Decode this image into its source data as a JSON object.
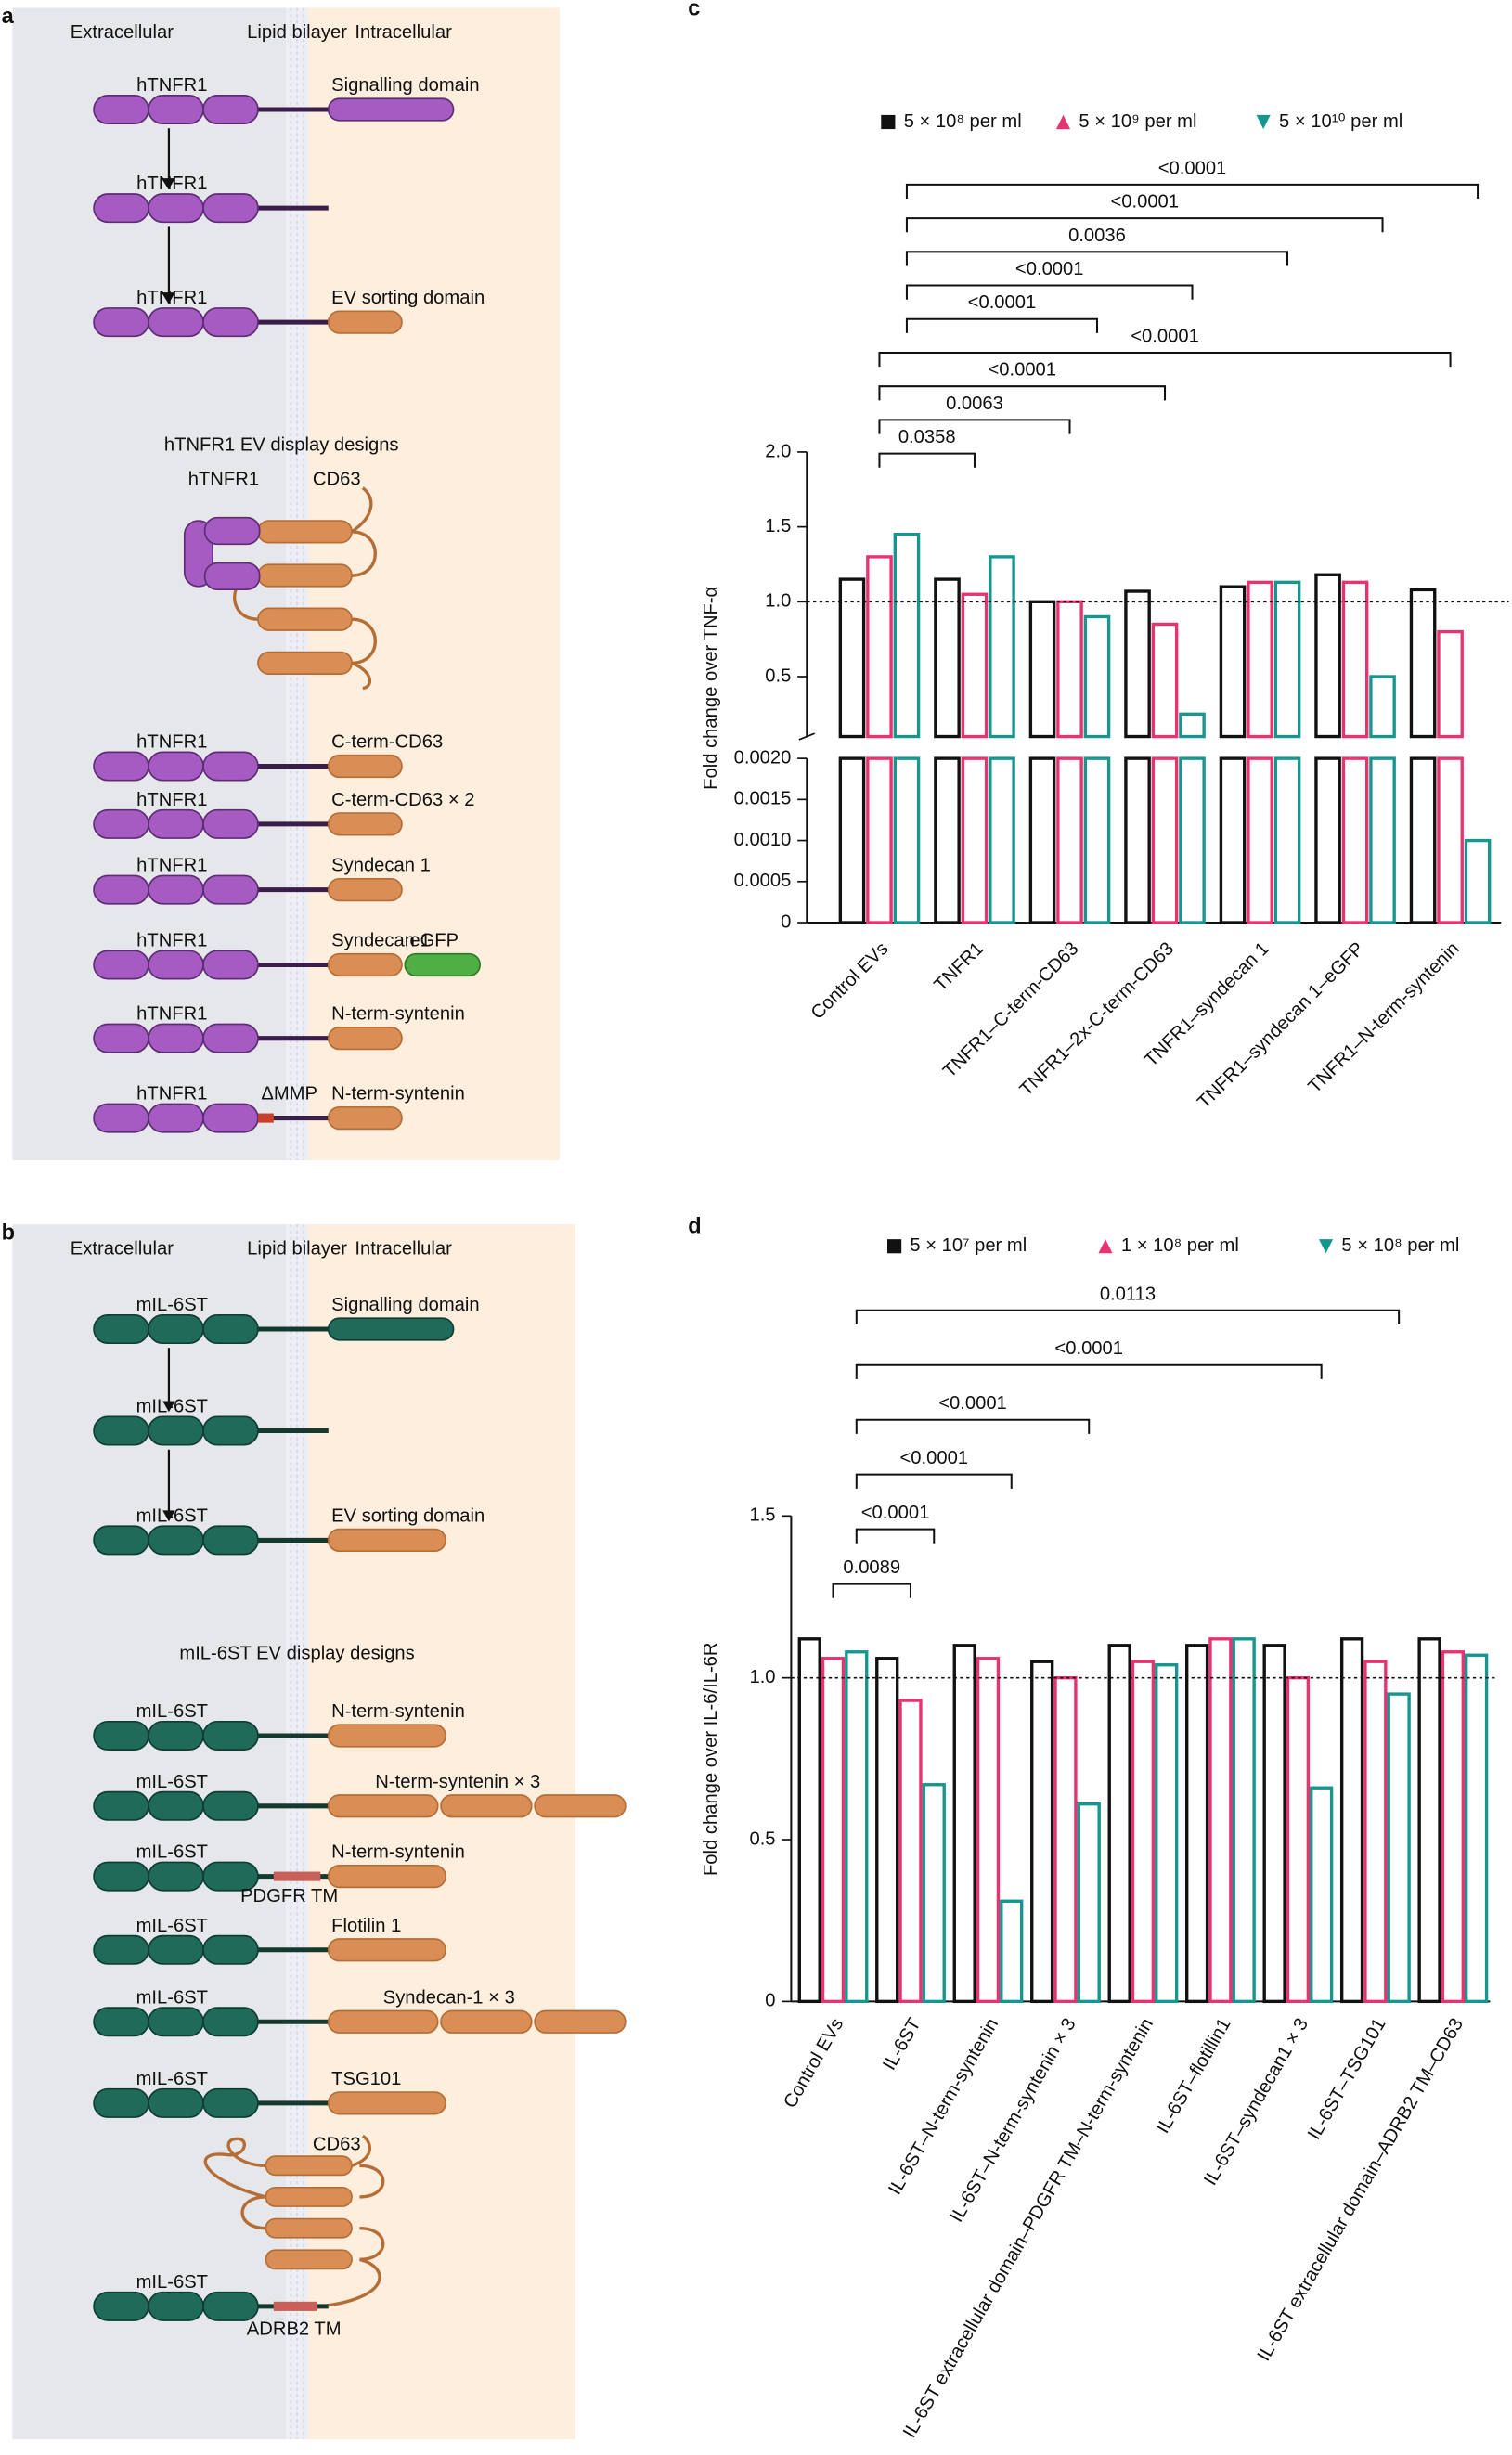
{
  "diagrams": {
    "a": {
      "panel_label": "a",
      "regions": [
        "Extracellular",
        "Lipid bilayer",
        "Intracellular"
      ],
      "constructs": [
        {
          "left": "hTNFR1",
          "right": "Signalling domain"
        },
        {
          "left": "hTNFR1"
        },
        {
          "left": "hTNFR1",
          "right": "EV sorting domain"
        }
      ],
      "designs_title": "hTNFR1 EV display designs",
      "designs": [
        {
          "left": "hTNFR1",
          "right": "CD63"
        },
        {
          "left": "hTNFR1",
          "right": "C-term-CD63"
        },
        {
          "left": "hTNFR1",
          "right": "C-term-CD63 × 2"
        },
        {
          "left": "hTNFR1",
          "right": "Syndecan 1"
        },
        {
          "left": "hTNFR1",
          "right": "Syndecan 1",
          "extra": "eGFP"
        },
        {
          "left": "hTNFR1",
          "right": "N-term-syntenin"
        },
        {
          "left": "hTNFR1",
          "right": "N-term-syntenin",
          "mid": "ΔMMP"
        }
      ]
    },
    "b": {
      "panel_label": "b",
      "regions": [
        "Extracellular",
        "Lipid bilayer",
        "Intracellular"
      ],
      "constructs": [
        {
          "left": "mIL-6ST",
          "right": "Signalling domain"
        },
        {
          "left": "mIL-6ST"
        },
        {
          "left": "mIL-6ST",
          "right": "EV sorting domain"
        }
      ],
      "designs_title": "mIL-6ST EV display designs",
      "designs": [
        {
          "left": "mIL-6ST",
          "right": "N-term-syntenin"
        },
        {
          "left": "mIL-6ST",
          "right": "N-term-syntenin × 3"
        },
        {
          "left": "mIL-6ST",
          "right": "N-term-syntenin",
          "below": "PDGFR TM"
        },
        {
          "left": "mIL-6ST",
          "right": "Flotilin 1"
        },
        {
          "left": "mIL-6ST",
          "right": "Syndecan-1 × 3"
        },
        {
          "left": "mIL-6ST",
          "right": "TSG101"
        },
        {
          "left": "mIL-6ST",
          "right": "CD63",
          "below": "ADRB2 TM"
        }
      ]
    }
  },
  "chart_data": [
    {
      "type": "bar",
      "panel_label": "c",
      "y_label": "Fold change over TNF-α",
      "categories": [
        "Control EVs",
        "TNFR1",
        "TNFR1–C-term-CD63",
        "TNFR1–2x-C-term-CD63",
        "TNFR1–syndecan 1",
        "TNFR1–syndecan 1–eGFP",
        "TNFR1–N-term-syntenin"
      ],
      "series": [
        {
          "name": "5 × 10⁸ per ml",
          "color": "#111111",
          "marker": "square",
          "values": [
            1.15,
            1.15,
            1.0,
            1.07,
            1.1,
            1.18,
            1.08
          ]
        },
        {
          "name": "5 × 10⁹ per ml",
          "color": "#e8336e",
          "marker": "triangle-up",
          "values": [
            1.3,
            1.05,
            1.0,
            0.85,
            1.13,
            1.13,
            0.8
          ]
        },
        {
          "name": "5 × 10¹⁰ per ml",
          "color": "#16968e",
          "marker": "triangle-down",
          "values": [
            1.45,
            1.3,
            0.9,
            0.25,
            1.13,
            0.5,
            0.001
          ]
        }
      ],
      "axis_break": {
        "upper": {
          "ylim": [
            0.1,
            2.0
          ],
          "yticks": [
            0.5,
            {
              "value": 1,
              "label": "1.0"
            },
            1.5,
            {
              "value": 2,
              "label": "2.0"
            }
          ]
        },
        "lower": {
          "ylim": [
            0,
            0.002
          ],
          "yticks": [
            0,
            0.0005,
            {
              "value": 0.001,
              "label": "0.0010"
            },
            0.0015,
            {
              "value": 0.002,
              "label": "0.0020"
            }
          ]
        }
      },
      "reference_line": 1,
      "comparisons": [
        {
          "series": 1,
          "to": 1,
          "label": "0.0358"
        },
        {
          "series": 1,
          "to": 2,
          "label": "0.0063"
        },
        {
          "series": 1,
          "to": 3,
          "label": "<0.0001"
        },
        {
          "series": 1,
          "to": 6,
          "label": "<0.0001"
        },
        {
          "series": 2,
          "to": 2,
          "label": "<0.0001"
        },
        {
          "series": 2,
          "to": 3,
          "label": "<0.0001"
        },
        {
          "series": 2,
          "to": 4,
          "label": "0.0036"
        },
        {
          "series": 2,
          "to": 5,
          "label": "<0.0001"
        },
        {
          "series": 2,
          "to": 6,
          "label": "<0.0001"
        }
      ]
    },
    {
      "type": "bar",
      "panel_label": "d",
      "y_label": "Fold change over IL-6/IL-6R",
      "categories": [
        "Control EVs",
        "IL-6ST",
        "IL-6ST–N-term-syntenin",
        "IL-6ST–N-term-syntenin × 3",
        "IL-6ST extracellular domain–PDGFR TM–N-term-syntenin",
        "IL-6ST–flotillin1",
        "IL-6ST–syndecan1 × 3",
        "IL-6ST–TSG101",
        "IL-6ST extracellular domain–ADRB2 TM–CD63"
      ],
      "series": [
        {
          "name": "5 × 10⁷ per ml",
          "color": "#111111",
          "marker": "square",
          "values": [
            1.12,
            1.06,
            1.1,
            1.05,
            1.1,
            1.1,
            1.1,
            1.12,
            1.12
          ]
        },
        {
          "name": "1 × 10⁸ per ml",
          "color": "#e8336e",
          "marker": "triangle-up",
          "values": [
            1.06,
            0.93,
            1.06,
            1.0,
            1.05,
            1.12,
            1.0,
            1.05,
            1.08
          ]
        },
        {
          "name": "5 × 10⁸ per ml",
          "color": "#16968e",
          "marker": "triangle-down",
          "values": [
            1.08,
            0.67,
            0.31,
            0.61,
            1.04,
            1.12,
            0.66,
            0.95,
            1.07
          ]
        }
      ],
      "ylim": [
        0,
        1.5
      ],
      "yticks": [
        0,
        0.5,
        {
          "value": 1,
          "label": "1.0"
        },
        1.5
      ],
      "reference_line": 1,
      "comparisons": [
        {
          "series": 1,
          "to": 1,
          "label": "0.0089"
        },
        {
          "series": 2,
          "to": 1,
          "label": "<0.0001"
        },
        {
          "series": 2,
          "to": 2,
          "label": "<0.0001"
        },
        {
          "series": 2,
          "to": 3,
          "label": "<0.0001"
        },
        {
          "series": 2,
          "to": 6,
          "label": "<0.0001"
        },
        {
          "series": 2,
          "to": 7,
          "label": "0.0113"
        }
      ]
    }
  ]
}
